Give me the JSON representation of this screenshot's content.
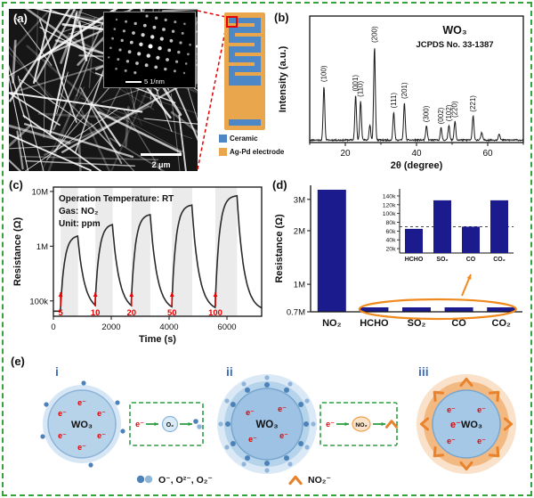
{
  "frame": {
    "border_color": "#38a33c"
  },
  "panel_a": {
    "label": "(a)",
    "sem_scalebar": "2 μm",
    "inset_scalebar": "5 1/nm",
    "roi_color": "#e60000",
    "legend": [
      {
        "label": "Ceramic",
        "color": "#4e87c6"
      },
      {
        "label": "Ag-Pd electrode",
        "color": "#eaa64d"
      }
    ]
  },
  "panel_b": {
    "label": "(b)"
  },
  "panel_c": {
    "label": "(c)"
  },
  "panel_d": {
    "label": "(d)"
  },
  "panel_e": {
    "label": "(e)",
    "stage_labels": [
      "i",
      "ii",
      "iii"
    ],
    "material": "WO₃",
    "electron": "e⁻",
    "o2_label": "O₂",
    "no2_label": "NO₂",
    "legend_oxygen": "O⁻, O²⁻, O₂⁻",
    "legend_no2": "NO₂⁻",
    "accent_blue": "#4d82b8",
    "accent_blue_light": "#8fb6da",
    "accent_orange": "#e8822c",
    "green": "#2f9e44"
  },
  "chart_data": [
    {
      "id": "xrd",
      "type": "line",
      "title": "WO₃",
      "subtitle": "JCPDS No. 33-1387",
      "xlabel": "2θ (degree)",
      "ylabel": "Intensity (a.u.)",
      "xlim": [
        10,
        70
      ],
      "xticks": [
        20,
        40,
        60
      ],
      "peaks": [
        {
          "two_theta": 14.0,
          "rel_intensity": 0.58,
          "label": "(100)"
        },
        {
          "two_theta": 22.9,
          "rel_intensity": 0.48,
          "label": "(001)"
        },
        {
          "two_theta": 24.3,
          "rel_intensity": 0.42,
          "label": "(110)"
        },
        {
          "two_theta": 26.9,
          "rel_intensity": 0.16,
          "label": ""
        },
        {
          "two_theta": 28.2,
          "rel_intensity": 1.0,
          "label": "(200)"
        },
        {
          "two_theta": 33.6,
          "rel_intensity": 0.3,
          "label": "(111)"
        },
        {
          "two_theta": 36.6,
          "rel_intensity": 0.4,
          "label": "(201)"
        },
        {
          "two_theta": 42.8,
          "rel_intensity": 0.15,
          "label": "(300)"
        },
        {
          "two_theta": 46.9,
          "rel_intensity": 0.13,
          "label": "(002)"
        },
        {
          "two_theta": 49.1,
          "rel_intensity": 0.16,
          "label": "(102)"
        },
        {
          "two_theta": 50.8,
          "rel_intensity": 0.2,
          "label": "(220)"
        },
        {
          "two_theta": 55.9,
          "rel_intensity": 0.26,
          "label": "(221)"
        },
        {
          "two_theta": 58.3,
          "rel_intensity": 0.08,
          "label": ""
        },
        {
          "two_theta": 63.2,
          "rel_intensity": 0.07,
          "label": ""
        }
      ]
    },
    {
      "id": "no2-response",
      "type": "line",
      "annotations": [
        "Operation Temperature: RT",
        "Gas: NO₂",
        "Unit: ppm"
      ],
      "xlabel": "Time (s)",
      "ylabel": "Resistance (Ω)",
      "xlim": [
        0,
        7200
      ],
      "xticks": [
        0,
        2000,
        4000,
        6000
      ],
      "ytick_labels": [
        "100k",
        "1M",
        "10M"
      ],
      "baseline_ohm": 65000,
      "pulses": [
        {
          "conc_ppm": 5,
          "t_on": 250,
          "t_off": 850,
          "peak_ohm": 1600000
        },
        {
          "conc_ppm": 10,
          "t_on": 1450,
          "t_off": 2050,
          "peak_ohm": 2600000
        },
        {
          "conc_ppm": 20,
          "t_on": 2700,
          "t_off": 3350,
          "peak_ohm": 3900000
        },
        {
          "conc_ppm": 50,
          "t_on": 4100,
          "t_off": 4800,
          "peak_ohm": 5800000
        },
        {
          "conc_ppm": 100,
          "t_on": 5600,
          "t_off": 6350,
          "peak_ohm": 8500000
        }
      ]
    },
    {
      "id": "selectivity",
      "type": "bar",
      "ylabel": "Resistance (Ω)",
      "ytick_labels": [
        "0.7M",
        "1M",
        "2M",
        "3M"
      ],
      "ytick_values": [
        700000,
        1000000,
        2000000,
        3000000
      ],
      "categories": [
        "NO₂",
        "HCHO",
        "SO₂",
        "CO",
        "CO₂"
      ],
      "values_ohm": [
        3400000,
        65000,
        130000,
        70000,
        130000
      ],
      "bar_color": "#1b1b8e"
    },
    {
      "id": "selectivity-inset",
      "type": "bar",
      "categories": [
        "HCHO",
        "SO₂",
        "CO",
        "CO₂"
      ],
      "values_ohm": [
        65000,
        130000,
        70000,
        130000
      ],
      "ytick_values": [
        20000,
        40000,
        60000,
        80000,
        100000,
        120000,
        140000
      ],
      "ytick_labels": [
        "20k",
        "40k",
        "60k",
        "80k",
        "100k",
        "120k",
        "140k"
      ],
      "dashed_line_ohm": 70000,
      "bar_color": "#1b1b8e"
    }
  ]
}
